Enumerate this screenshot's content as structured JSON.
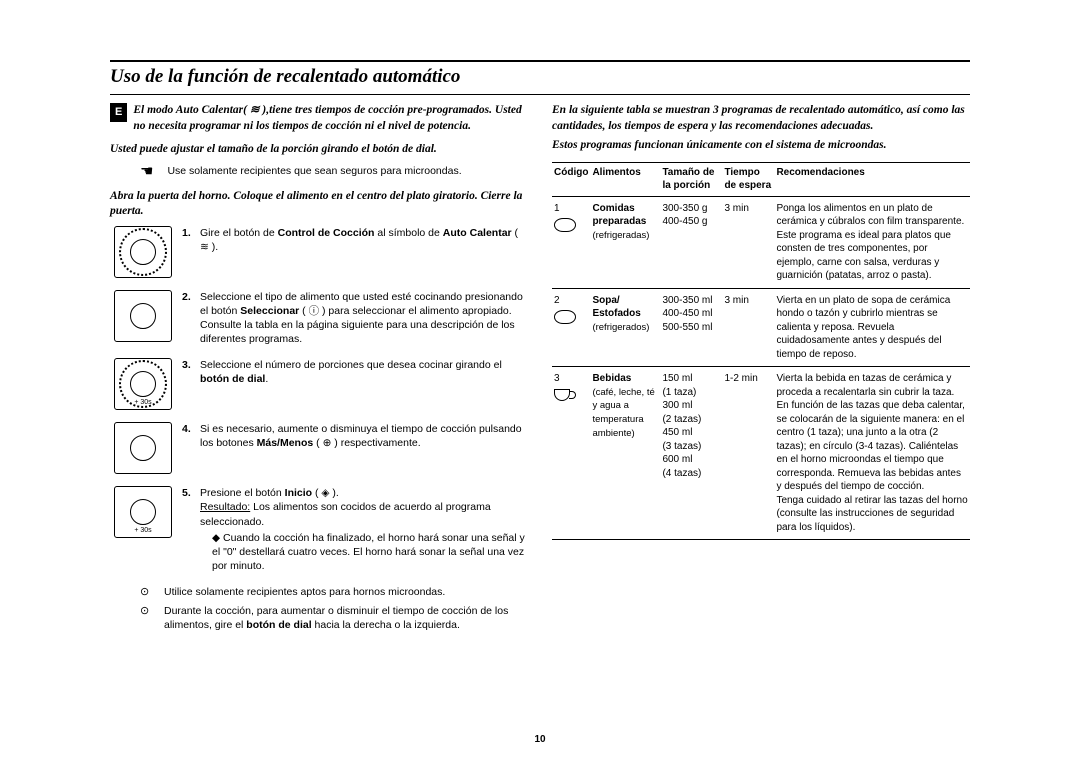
{
  "page": {
    "title": "Uso de la función de recalentado automático",
    "badge": "E",
    "page_number": "10"
  },
  "left": {
    "intro": "El modo Auto Calentar( ≋ ),tiene tres tiempos de cocción pre-programados. Usted no necesita programar ni los tiempos de cocción ni el nivel de potencia.",
    "sub1": "Usted puede ajustar el tamaño de la porción girando el botón de dial.",
    "safety": "Use solamente recipientes que sean seguros para microondas.",
    "sub2": "Abra la puerta del horno. Coloque el alimento en el centro del plato giratorio. Cierre la puerta.",
    "steps": [
      {
        "n": "1.",
        "txt": "Gire el botón de <b>Control de Cocción</b> al símbolo de <b>Auto Calentar</b> ( ≋ )."
      },
      {
        "n": "2.",
        "txt": "Seleccione el tipo de alimento que usted esté cocinando presionando el botón <b>Seleccionar</b> ( ⓘ ) para seleccionar el alimento apropiado. Consulte la tabla en la página siguiente para una descripción de los diferentes programas."
      },
      {
        "n": "3.",
        "txt": "Seleccione el número de porciones que desea cocinar girando el <b>botón de dial</b>."
      },
      {
        "n": "4.",
        "txt": "Si es necesario, aumente o disminuya el tiempo de cocción pulsando los botones <b>Más/Menos</b> ( ⊕ ) respectivamente."
      },
      {
        "n": "5.",
        "txt": "Presione el botón <b>Inicio</b> ( ◈ ).",
        "result_label": "Resultado:",
        "result": " Los alimentos son cocidos de acuerdo al programa seleccionado.",
        "bullet": "Cuando la cocción ha finalizado, el horno hará sonar una señal y el \"0\" destellará cuatro veces. El horno hará sonar la señal una vez por minuto."
      }
    ],
    "notes": [
      "Utilice solamente recipientes aptos para hornos microondas.",
      "Durante la cocción, para aumentar o disminuir el tiempo de cocción de los alimentos, gire el <b>botón de dial</b> hacia la derecha o la izquierda."
    ]
  },
  "right": {
    "intro": "En la siguiente tabla se muestran 3 programas de recalentado automático, así como las cantidades, los tiempos de espera y las recomendaciones adecuadas.",
    "intro2": "Estos programas funcionan únicamente con el sistema de microondas.",
    "headers": {
      "code": "Código",
      "food": "Alimentos",
      "size": "Tamaño de la porción",
      "time": "Tiempo de espera",
      "rec": "Recomendaciones"
    },
    "rows": [
      {
        "code": "1",
        "food": "<b>Comidas preparadas</b><br><span class='sub'>(refrigeradas)</span>",
        "size": "300-350 g<br>400-450 g",
        "time": "3 min",
        "rec": "Ponga los alimentos en un plato de cerámica y cúbralos con film transparente. Este programa es ideal para platos que consten de tres componentes, por ejemplo, carne con salsa, verduras y guarnición (patatas, arroz o pasta).",
        "ico": "plate"
      },
      {
        "code": "2",
        "food": "<b>Sopa/<br>Estofados</b><br><span class='sub'>(refrigerados)</span>",
        "size": "300-350 ml<br>400-450 ml<br>500-550 ml",
        "time": "3 min",
        "rec": "Vierta en un plato de sopa de cerámica hondo o tazón y cubrirlo mientras se calienta y reposa. Revuela cuidadosamente antes y después del tiempo de reposo.",
        "ico": "plate"
      },
      {
        "code": "3",
        "food": "<b>Bebidas</b><br><span class='sub'>(café, leche, té y agua a temperatura ambiente)</span>",
        "size": "150 ml<br>(1 taza)<br>300 ml<br>(2 tazas)<br>450 ml<br>(3 tazas)<br>600 ml<br>(4 tazas)",
        "time": "1-2 min",
        "rec": "Vierta la bebida en tazas de cerámica y proceda a recalentarla sin cubrir la taza. En función de las tazas que deba calentar, se colocarán de la siguiente manera: en el centro (1 taza); una junto a la otra (2 tazas); en círculo (3-4 tazas). Caliéntelas en el horno microondas el tiempo que corresponda. Remueva las bebidas antes y después del tiempo de cocción.<br>Tenga cuidado al retirar las tazas del horno (consulte las instrucciones de seguridad para los líquidos).",
        "ico": "cup"
      }
    ]
  }
}
